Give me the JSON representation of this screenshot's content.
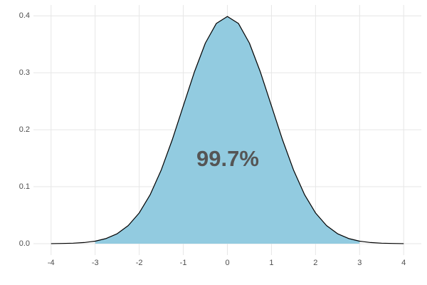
{
  "chart_data": {
    "type": "area",
    "x": [
      -4,
      -3.75,
      -3.5,
      -3.25,
      -3,
      -2.75,
      -2.5,
      -2.25,
      -2,
      -1.75,
      -1.5,
      -1.25,
      -1,
      -0.75,
      -0.5,
      -0.25,
      0,
      0.25,
      0.5,
      0.75,
      1,
      1.25,
      1.5,
      1.75,
      2,
      2.25,
      2.5,
      2.75,
      3,
      3.25,
      3.5,
      3.75,
      4
    ],
    "values": [
      0.0001,
      0.0004,
      0.0009,
      0.002,
      0.0044,
      0.0091,
      0.0175,
      0.0317,
      0.054,
      0.0863,
      0.1295,
      0.1826,
      0.242,
      0.3011,
      0.3521,
      0.3867,
      0.3989,
      0.3867,
      0.3521,
      0.3011,
      0.242,
      0.1826,
      0.1295,
      0.0863,
      0.054,
      0.0317,
      0.0175,
      0.0091,
      0.0044,
      0.002,
      0.0009,
      0.0004,
      0.0001
    ],
    "fill_values": [
      null,
      null,
      null,
      null,
      0.0044,
      0.0091,
      0.0175,
      0.0317,
      0.054,
      0.0863,
      0.1295,
      0.1826,
      0.242,
      0.3011,
      0.3521,
      0.3867,
      0.3989,
      0.3867,
      0.3521,
      0.3011,
      0.242,
      0.1826,
      0.1295,
      0.0863,
      0.054,
      0.0317,
      0.0175,
      0.0091,
      0.0044,
      null,
      null,
      null,
      null
    ],
    "line_color": "#000000",
    "fill_color": "#92cbe0",
    "annotation": "99.7%",
    "xlim": [
      -4.4,
      4.4
    ],
    "ylim": [
      -0.02,
      0.419
    ],
    "xticks": [
      -4,
      -3,
      -2,
      -1,
      0,
      1,
      2,
      3,
      4
    ],
    "yticks": [
      {
        "value": 0,
        "label": "0.0"
      },
      0.1,
      0.2,
      0.3,
      0.4
    ],
    "grid": true
  }
}
